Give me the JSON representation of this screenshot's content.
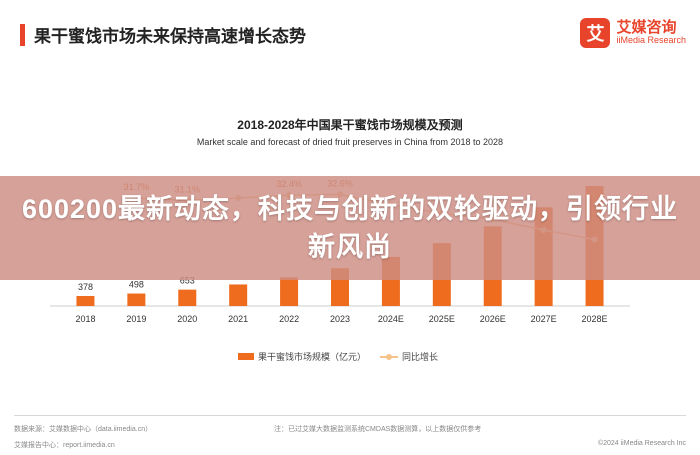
{
  "header": {
    "title": "果干蜜饯市场未来保持高速增长态势",
    "brand_logo_char": "艾",
    "brand_cn": "艾媒咨询",
    "brand_en": "iiMedia Research"
  },
  "banner": {
    "text": "600200最新动态，科技与创新的双轮驱动，引领行业新风尚"
  },
  "chart_data": {
    "type": "bar",
    "title": "2018-2028年中国果干蜜饯市场规模及预测",
    "subtitle": "Market scale and forecast of dried fruit preserves in China from 2018 to 2028",
    "categories": [
      "2018",
      "2019",
      "2020",
      "2021",
      "2022",
      "2023",
      "2024E",
      "2025E",
      "2026E",
      "2027E",
      "2028E"
    ],
    "series": [
      {
        "name": "果干蜜饯市场规模（亿元）",
        "type": "bar",
        "color": "#ef6c1e",
        "values": [
          378,
          498,
          653,
          860,
          1140,
          1510,
          1960,
          2510,
          3180,
          3940,
          4790
        ],
        "labels": [
          "378",
          "498",
          "653",
          "",
          "",
          "",
          "",
          "",
          "",
          "",
          ""
        ]
      },
      {
        "name": "同比增长",
        "type": "line",
        "color": "#f5c28a",
        "unit": "%",
        "values": [
          null,
          31.7,
          31.1,
          31.7,
          32.4,
          32.6,
          30.0,
          28.0,
          26.5,
          23.9,
          21.6
        ],
        "labels": [
          "",
          "31.7%",
          "31.1%",
          "",
          "32.4%",
          "32.6%",
          "",
          "",
          "",
          "",
          ""
        ]
      }
    ],
    "legend_position": "bottom-center"
  },
  "footer": {
    "source": "数据来源：艾媒数据中心（data.iimedia.cn）",
    "note": "注：已过艾媒大数据监测系统CMDAS数据测算，以上数据仅供参考",
    "copyright": "©2024 iiMedia Research Inc",
    "website": "艾媒报告中心：report.iimedia.cn"
  }
}
